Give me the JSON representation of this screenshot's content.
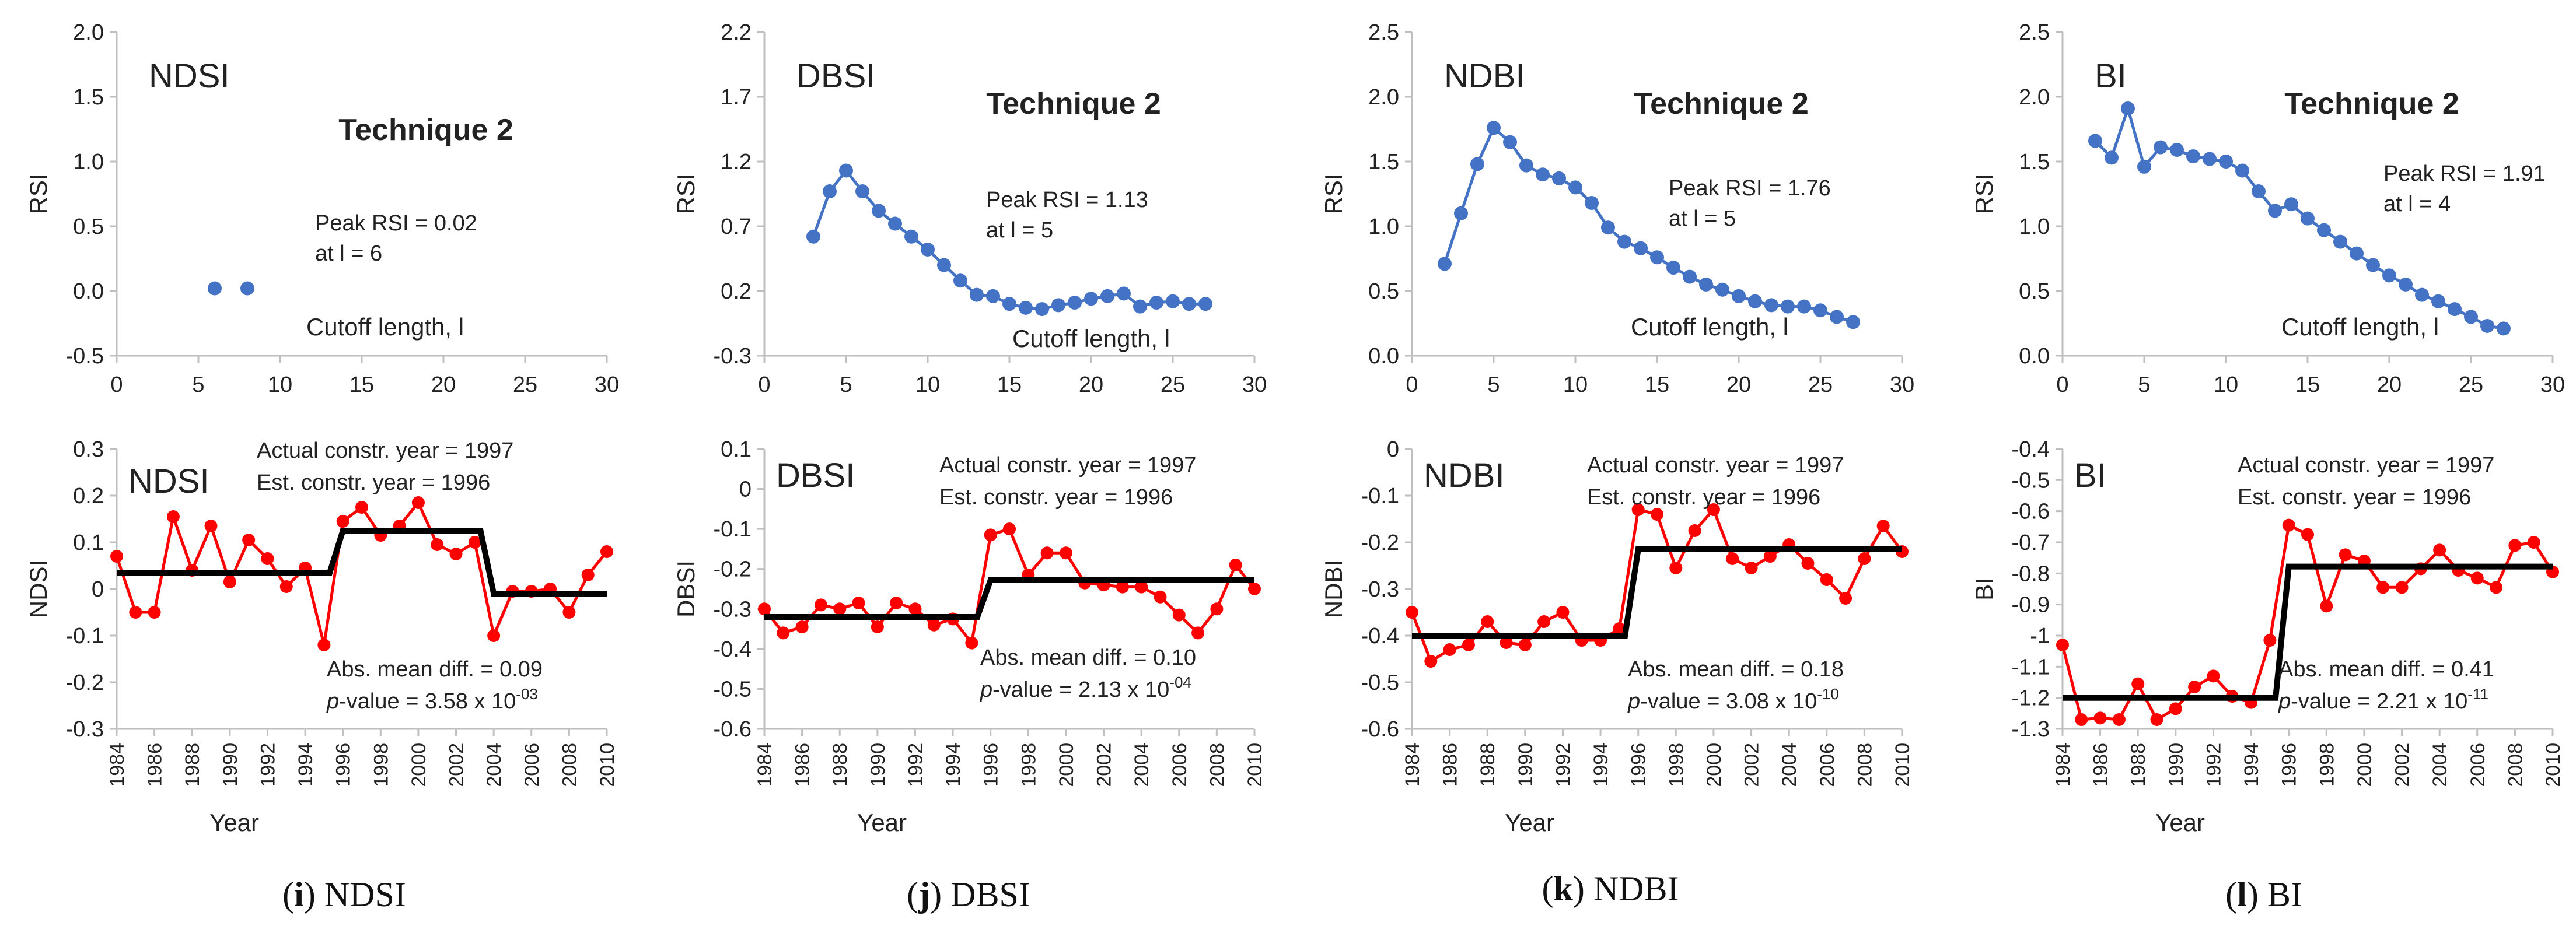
{
  "chart_data": [
    {
      "type": "scatter",
      "panel": "i",
      "label": "NDSI",
      "title": "Technique 2",
      "xlabel": "Cutoff length, l",
      "ylabel": "RSI",
      "xlim": [
        0,
        30
      ],
      "xticks": [
        0,
        5,
        10,
        15,
        20,
        25,
        30
      ],
      "ylim": [
        -0.5,
        2.0
      ],
      "yticks": [
        -0.5,
        0.0,
        0.5,
        1.0,
        1.5,
        2.0
      ],
      "ytick_labels": [
        "-0.5",
        "0.0",
        "0.5",
        "1.0",
        "1.5",
        "2.0"
      ],
      "series": [
        {
          "name": "RSI",
          "x": [
            6,
            8
          ],
          "y": [
            0.02,
            0.02
          ]
        }
      ],
      "peak_text": "Peak RSI = 0.02",
      "peak_at": "at l = 6",
      "connect": false
    },
    {
      "type": "line",
      "panel": "j",
      "label": "DBSI",
      "title": "Technique 2",
      "xlabel": "Cutoff length, l",
      "ylabel": "RSI",
      "xlim": [
        0,
        30
      ],
      "xticks": [
        0,
        5,
        10,
        15,
        20,
        25,
        30
      ],
      "ylim": [
        -0.3,
        2.2
      ],
      "yticks": [
        -0.3,
        0.2,
        0.7,
        1.2,
        1.7,
        2.2
      ],
      "ytick_labels": [
        "-0.3",
        "0.2",
        "0.7",
        "1.2",
        "1.7",
        "2.2"
      ],
      "series": [
        {
          "name": "RSI",
          "x": [
            3,
            4,
            5,
            6,
            7,
            8,
            9,
            10,
            11,
            12,
            13,
            14,
            15,
            16,
            17,
            18,
            19,
            20,
            21,
            22,
            23,
            24,
            25,
            26,
            27
          ],
          "y": [
            0.62,
            0.97,
            1.13,
            0.97,
            0.82,
            0.72,
            0.62,
            0.52,
            0.4,
            0.28,
            0.17,
            0.16,
            0.1,
            0.07,
            0.06,
            0.09,
            0.11,
            0.14,
            0.16,
            0.18,
            0.08,
            0.11,
            0.12,
            0.1,
            0.1
          ]
        }
      ],
      "peak_text": "Peak RSI = 1.13",
      "peak_at": "at l = 5",
      "connect": true
    },
    {
      "type": "line",
      "panel": "k",
      "label": "NDBI",
      "title": "Technique 2",
      "xlabel": "Cutoff length, l",
      "ylabel": "RSI",
      "xlim": [
        0,
        30
      ],
      "xticks": [
        0,
        5,
        10,
        15,
        20,
        25,
        30
      ],
      "ylim": [
        0.0,
        2.5
      ],
      "yticks": [
        0.0,
        0.5,
        1.0,
        1.5,
        2.0,
        2.5
      ],
      "ytick_labels": [
        "0.0",
        "0.5",
        "1.0",
        "1.5",
        "2.0",
        "2.5"
      ],
      "series": [
        {
          "name": "RSI",
          "x": [
            2,
            3,
            4,
            5,
            6,
            7,
            8,
            9,
            10,
            11,
            12,
            13,
            14,
            15,
            16,
            17,
            18,
            19,
            20,
            21,
            22,
            23,
            24,
            25,
            26,
            27
          ],
          "y": [
            0.71,
            1.1,
            1.48,
            1.76,
            1.65,
            1.47,
            1.4,
            1.37,
            1.3,
            1.18,
            0.99,
            0.88,
            0.83,
            0.76,
            0.68,
            0.61,
            0.55,
            0.51,
            0.46,
            0.42,
            0.39,
            0.38,
            0.38,
            0.35,
            0.3,
            0.26
          ]
        }
      ],
      "peak_text": "Peak RSI = 1.76",
      "peak_at": "at l = 5",
      "connect": true
    },
    {
      "type": "line",
      "panel": "l",
      "label": "BI",
      "title": "Technique 2",
      "xlabel": "Cutoff length, l",
      "ylabel": "RSI",
      "xlim": [
        0,
        30
      ],
      "xticks": [
        0,
        5,
        10,
        15,
        20,
        25,
        30
      ],
      "ylim": [
        0.0,
        2.5
      ],
      "yticks": [
        0.0,
        0.5,
        1.0,
        1.5,
        2.0,
        2.5
      ],
      "ytick_labels": [
        "0.0",
        "0.5",
        "1.0",
        "1.5",
        "2.0",
        "2.5"
      ],
      "series": [
        {
          "name": "RSI",
          "x": [
            2,
            3,
            4,
            5,
            6,
            7,
            8,
            9,
            10,
            11,
            12,
            13,
            14,
            15,
            16,
            17,
            18,
            19,
            20,
            21,
            22,
            23,
            24,
            25,
            26,
            27
          ],
          "y": [
            1.66,
            1.53,
            1.91,
            1.46,
            1.61,
            1.59,
            1.54,
            1.52,
            1.5,
            1.43,
            1.27,
            1.12,
            1.17,
            1.06,
            0.97,
            0.88,
            0.79,
            0.7,
            0.62,
            0.55,
            0.47,
            0.42,
            0.36,
            0.3,
            0.23,
            0.21
          ]
        }
      ],
      "peak_text": "Peak RSI = 1.91",
      "peak_at": "at l = 4",
      "connect": true
    },
    {
      "type": "line",
      "panel": "i",
      "label": "NDSI",
      "xlabel": "Year",
      "ylabel": "NDSI",
      "xlim": [
        1984,
        2010
      ],
      "xticks": [
        1984,
        1986,
        1988,
        1990,
        1992,
        1994,
        1996,
        1998,
        2000,
        2002,
        2004,
        2006,
        2008,
        2010
      ],
      "ylim": [
        -0.3,
        0.3
      ],
      "yticks": [
        -0.3,
        -0.2,
        -0.1,
        0,
        0.1,
        0.2,
        0.3
      ],
      "ytick_labels": [
        "-0.3",
        "-0.2",
        "-0.1",
        "0",
        "0.1",
        "0.2",
        "0.3"
      ],
      "series": [
        {
          "name": "NDSI",
          "x": [
            1984,
            1985,
            1986,
            1987,
            1988,
            1989,
            1990,
            1991,
            1992,
            1993,
            1994,
            1995,
            1996,
            1997,
            1998,
            1999,
            2000,
            2001,
            2002,
            2003,
            2004,
            2005,
            2006,
            2007,
            2008,
            2009,
            2010
          ],
          "y": [
            0.07,
            -0.05,
            -0.05,
            0.155,
            0.04,
            0.135,
            0.015,
            0.105,
            0.065,
            0.005,
            0.045,
            -0.12,
            0.145,
            0.175,
            0.115,
            0.135,
            0.185,
            0.095,
            0.075,
            0.1,
            -0.1,
            -0.005,
            -0.005,
            0,
            -0.05,
            0.03,
            0.08
          ]
        }
      ],
      "step": [
        [
          1984,
          0.035
        ],
        [
          1995.3,
          0.035
        ],
        [
          1996,
          0.125
        ],
        [
          2003.3,
          0.125
        ],
        [
          2004,
          -0.01
        ],
        [
          2010,
          -0.01
        ]
      ],
      "actual_year": "Actual constr. year = 1997",
      "est_year": "Est. constr. year = 1996",
      "abs_diff": "Abs. mean diff. =  0.09",
      "p_label": "p",
      "p_rest": "-value = 3.58 x 10",
      "p_exp": "-03"
    },
    {
      "type": "line",
      "panel": "j",
      "label": "DBSI",
      "xlabel": "Year",
      "ylabel": "DBSI",
      "xlim": [
        1984,
        2010
      ],
      "xticks": [
        1984,
        1986,
        1988,
        1990,
        1992,
        1994,
        1996,
        1998,
        2000,
        2002,
        2004,
        2006,
        2008,
        2010
      ],
      "ylim": [
        -0.6,
        0.1
      ],
      "yticks": [
        -0.6,
        -0.5,
        -0.4,
        -0.3,
        -0.2,
        -0.1,
        0,
        0.1
      ],
      "ytick_labels": [
        "-0.6",
        "-0.5",
        "-0.4",
        "-0.3",
        "-0.2",
        "-0.1",
        "0",
        "0.1"
      ],
      "series": [
        {
          "name": "DBSI",
          "x": [
            1984,
            1985,
            1986,
            1987,
            1988,
            1989,
            1990,
            1991,
            1992,
            1993,
            1994,
            1995,
            1996,
            1997,
            1998,
            1999,
            2000,
            2001,
            2002,
            2003,
            2004,
            2005,
            2006,
            2007,
            2008,
            2009,
            2010
          ],
          "y": [
            -0.3,
            -0.36,
            -0.345,
            -0.29,
            -0.3,
            -0.285,
            -0.345,
            -0.285,
            -0.3,
            -0.34,
            -0.325,
            -0.385,
            -0.115,
            -0.1,
            -0.215,
            -0.16,
            -0.16,
            -0.235,
            -0.24,
            -0.245,
            -0.245,
            -0.27,
            -0.315,
            -0.36,
            -0.3,
            -0.19,
            -0.25
          ]
        }
      ],
      "step": [
        [
          1984,
          -0.32
        ],
        [
          1995.3,
          -0.32
        ],
        [
          1996,
          -0.228
        ],
        [
          2010,
          -0.228
        ]
      ],
      "actual_year": "Actual constr. year = 1997",
      "est_year": "Est. constr. year = 1996",
      "abs_diff": "Abs. mean diff. = 0.10",
      "p_label": "p",
      "p_rest": "-value = 2.13 x 10",
      "p_exp": "-04"
    },
    {
      "type": "line",
      "panel": "k",
      "label": "NDBI",
      "xlabel": "Year",
      "ylabel": "NDBI",
      "xlim": [
        1984,
        2010
      ],
      "xticks": [
        1984,
        1986,
        1988,
        1990,
        1992,
        1994,
        1996,
        1998,
        2000,
        2002,
        2004,
        2006,
        2008,
        2010
      ],
      "ylim": [
        -0.6,
        0
      ],
      "yticks": [
        -0.6,
        -0.5,
        -0.4,
        -0.3,
        -0.2,
        -0.1,
        0
      ],
      "ytick_labels": [
        "-0.6",
        "-0.5",
        "-0.4",
        "-0.3",
        "-0.2",
        "-0.1",
        "0"
      ],
      "series": [
        {
          "name": "NDBI",
          "x": [
            1984,
            1985,
            1986,
            1987,
            1988,
            1989,
            1990,
            1991,
            1992,
            1993,
            1994,
            1995,
            1996,
            1997,
            1998,
            1999,
            2000,
            2001,
            2002,
            2003,
            2004,
            2005,
            2006,
            2007,
            2008,
            2009,
            2010
          ],
          "y": [
            -0.35,
            -0.455,
            -0.43,
            -0.42,
            -0.37,
            -0.415,
            -0.42,
            -0.37,
            -0.35,
            -0.41,
            -0.41,
            -0.385,
            -0.13,
            -0.14,
            -0.255,
            -0.175,
            -0.13,
            -0.235,
            -0.255,
            -0.23,
            -0.205,
            -0.245,
            -0.28,
            -0.32,
            -0.235,
            -0.165,
            -0.22
          ]
        }
      ],
      "step": [
        [
          1984,
          -0.4
        ],
        [
          1995.3,
          -0.4
        ],
        [
          1996,
          -0.215
        ],
        [
          2010,
          -0.215
        ]
      ],
      "actual_year": "Actual constr. year = 1997",
      "est_year": "Est. constr. year = 1996",
      "abs_diff": "Abs. mean diff. = 0.18",
      "p_label": "p",
      "p_rest": "-value = 3.08 x 10",
      "p_exp": "-10"
    },
    {
      "type": "line",
      "panel": "l",
      "label": "BI",
      "xlabel": "Year",
      "ylabel": "BI",
      "xlim": [
        1984,
        2010
      ],
      "xticks": [
        1984,
        1986,
        1988,
        1990,
        1992,
        1994,
        1996,
        1998,
        2000,
        2002,
        2004,
        2006,
        2008,
        2010
      ],
      "ylim": [
        -1.3,
        -0.4
      ],
      "yticks": [
        -1.3,
        -1.2,
        -1.1,
        -1,
        -0.9,
        -0.8,
        -0.7,
        -0.6,
        -0.5,
        -0.4
      ],
      "ytick_labels": [
        "-1.3",
        "-1.2",
        "-1.1",
        "-1",
        "-0.9",
        "-0.8",
        "-0.7",
        "-0.6",
        "-0.5",
        "-0.4"
      ],
      "series": [
        {
          "name": "BI",
          "x": [
            1984,
            1985,
            1986,
            1987,
            1988,
            1989,
            1990,
            1991,
            1992,
            1993,
            1994,
            1995,
            1996,
            1997,
            1998,
            1999,
            2000,
            2001,
            2002,
            2003,
            2004,
            2005,
            2006,
            2007,
            2008,
            2009,
            2010
          ],
          "y": [
            -1.03,
            -1.27,
            -1.265,
            -1.27,
            -1.155,
            -1.27,
            -1.235,
            -1.165,
            -1.13,
            -1.195,
            -1.215,
            -1.015,
            -0.645,
            -0.675,
            -0.905,
            -0.74,
            -0.76,
            -0.845,
            -0.845,
            -0.785,
            -0.725,
            -0.79,
            -0.815,
            -0.845,
            -0.71,
            -0.7,
            -0.795
          ]
        }
      ],
      "step": [
        [
          1984,
          -1.2
        ],
        [
          1995.3,
          -1.2
        ],
        [
          1996,
          -0.778
        ],
        [
          2010,
          -0.778
        ]
      ],
      "actual_year": "Actual constr. year = 1997",
      "est_year": "Est. constr. year = 1996",
      "abs_diff": "Abs. mean diff. = 0.41",
      "p_label": "p",
      "p_rest": "-value = 2.21 x 10",
      "p_exp": "-11"
    }
  ],
  "captions": [
    {
      "letter": "i",
      "name": "NDSI"
    },
    {
      "letter": "j",
      "name": "DBSI"
    },
    {
      "letter": "k",
      "name": "NDBI"
    },
    {
      "letter": "l",
      "name": "BI"
    }
  ],
  "colors": {
    "rsi": "#4472C4",
    "series": "#FF0000",
    "step": "#000000",
    "axis": "#BFBFBF"
  }
}
